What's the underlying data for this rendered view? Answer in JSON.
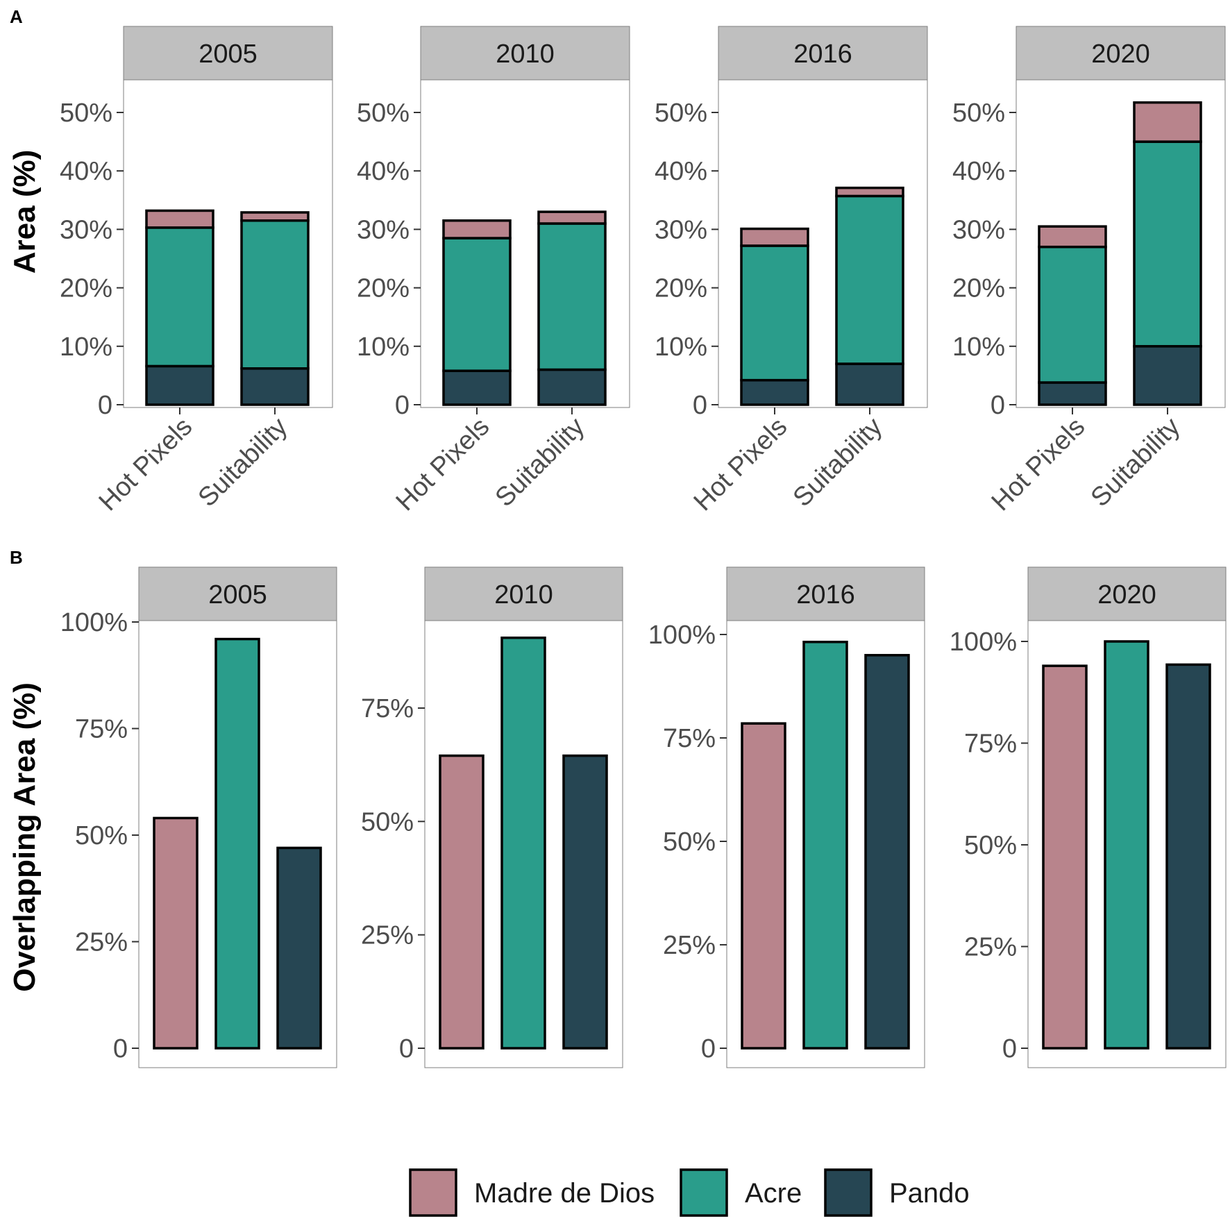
{
  "colors": {
    "Madre de Dios": "#b8848c",
    "Acre": "#2a9d8b",
    "Pando": "#264653",
    "strip_bg": "#bfbfbf",
    "panel_border": "#7f7f7f",
    "bar_outline": "#000000",
    "tick_text": "#4d4d4d"
  },
  "chart_data": [
    {
      "panel_label": "A",
      "type": "stacked-bar",
      "ylabel": "Area (%)",
      "ylim": [
        0,
        55
      ],
      "yticks": [
        {
          "value": 0,
          "label": "0"
        },
        {
          "value": 10,
          "label": "10%"
        },
        {
          "value": 20,
          "label": "20%"
        },
        {
          "value": 30,
          "label": "30%"
        },
        {
          "value": 40,
          "label": "40%"
        },
        {
          "value": 50,
          "label": "50%"
        }
      ],
      "categories": [
        "Hot Pixels",
        "Suitability"
      ],
      "stack_order": [
        "Pando",
        "Acre",
        "Madre de Dios"
      ],
      "facets": [
        {
          "strip": "2005",
          "bars": [
            {
              "category": "Hot Pixels",
              "Pando": 6.6,
              "Acre": 23.7,
              "Madre de Dios": 2.9
            },
            {
              "category": "Suitability",
              "Pando": 6.2,
              "Acre": 25.3,
              "Madre de Dios": 1.4
            }
          ]
        },
        {
          "strip": "2010",
          "bars": [
            {
              "category": "Hot Pixels",
              "Pando": 5.8,
              "Acre": 22.7,
              "Madre de Dios": 3.0
            },
            {
              "category": "Suitability",
              "Pando": 6.0,
              "Acre": 25.0,
              "Madre de Dios": 2.0
            }
          ]
        },
        {
          "strip": "2016",
          "bars": [
            {
              "category": "Hot Pixels",
              "Pando": 4.2,
              "Acre": 23.0,
              "Madre de Dios": 2.9
            },
            {
              "category": "Suitability",
              "Pando": 7.0,
              "Acre": 28.7,
              "Madre de Dios": 1.4
            }
          ]
        },
        {
          "strip": "2020",
          "bars": [
            {
              "category": "Hot Pixels",
              "Pando": 3.8,
              "Acre": 23.2,
              "Madre de Dios": 3.5
            },
            {
              "category": "Suitability",
              "Pando": 10.0,
              "Acre": 35.0,
              "Madre de Dios": 6.7
            }
          ]
        }
      ]
    },
    {
      "panel_label": "B",
      "type": "bar",
      "ylabel": "Overlapping Area (%)",
      "series_order": [
        "Madre de Dios",
        "Acre",
        "Pando"
      ],
      "facets": [
        {
          "strip": "2005",
          "ylim": [
            0,
            100
          ],
          "yticks": [
            {
              "value": 0,
              "label": "0"
            },
            {
              "value": 25,
              "label": "25%"
            },
            {
              "value": 50,
              "label": "50%"
            },
            {
              "value": 75,
              "label": "75%"
            },
            {
              "value": 100,
              "label": "100%"
            }
          ],
          "values": {
            "Madre de Dios": 54,
            "Acre": 96,
            "Pando": 47
          }
        },
        {
          "strip": "2010",
          "ylim": [
            0,
            95
          ],
          "yticks": [
            {
              "value": 0,
              "label": "0"
            },
            {
              "value": 25,
              "label": "25%"
            },
            {
              "value": 50,
              "label": "50%"
            },
            {
              "value": 75,
              "label": "75%"
            }
          ],
          "values": {
            "Madre de Dios": 64.5,
            "Acre": 90.5,
            "Pando": 64.5
          }
        },
        {
          "strip": "2016",
          "ylim": [
            0,
            100
          ],
          "yticks": [
            {
              "value": 0,
              "label": "0"
            },
            {
              "value": 25,
              "label": "25%"
            },
            {
              "value": 50,
              "label": "50%"
            },
            {
              "value": 75,
              "label": "75%"
            },
            {
              "value": 100,
              "label": "100%"
            }
          ],
          "values": {
            "Madre de Dios": 78.5,
            "Acre": 98.2,
            "Pando": 95
          }
        },
        {
          "strip": "2020",
          "ylim": [
            0,
            100
          ],
          "yticks": [
            {
              "value": 0,
              "label": "0"
            },
            {
              "value": 25,
              "label": "25%"
            },
            {
              "value": 50,
              "label": "50%"
            },
            {
              "value": 75,
              "label": "75%"
            },
            {
              "value": 100,
              "label": "100%"
            }
          ],
          "values": {
            "Madre de Dios": 94,
            "Acre": 100,
            "Pando": 94.3
          }
        }
      ]
    }
  ],
  "legend": {
    "placement": "bottom",
    "items": [
      "Madre de Dios",
      "Acre",
      "Pando"
    ]
  }
}
